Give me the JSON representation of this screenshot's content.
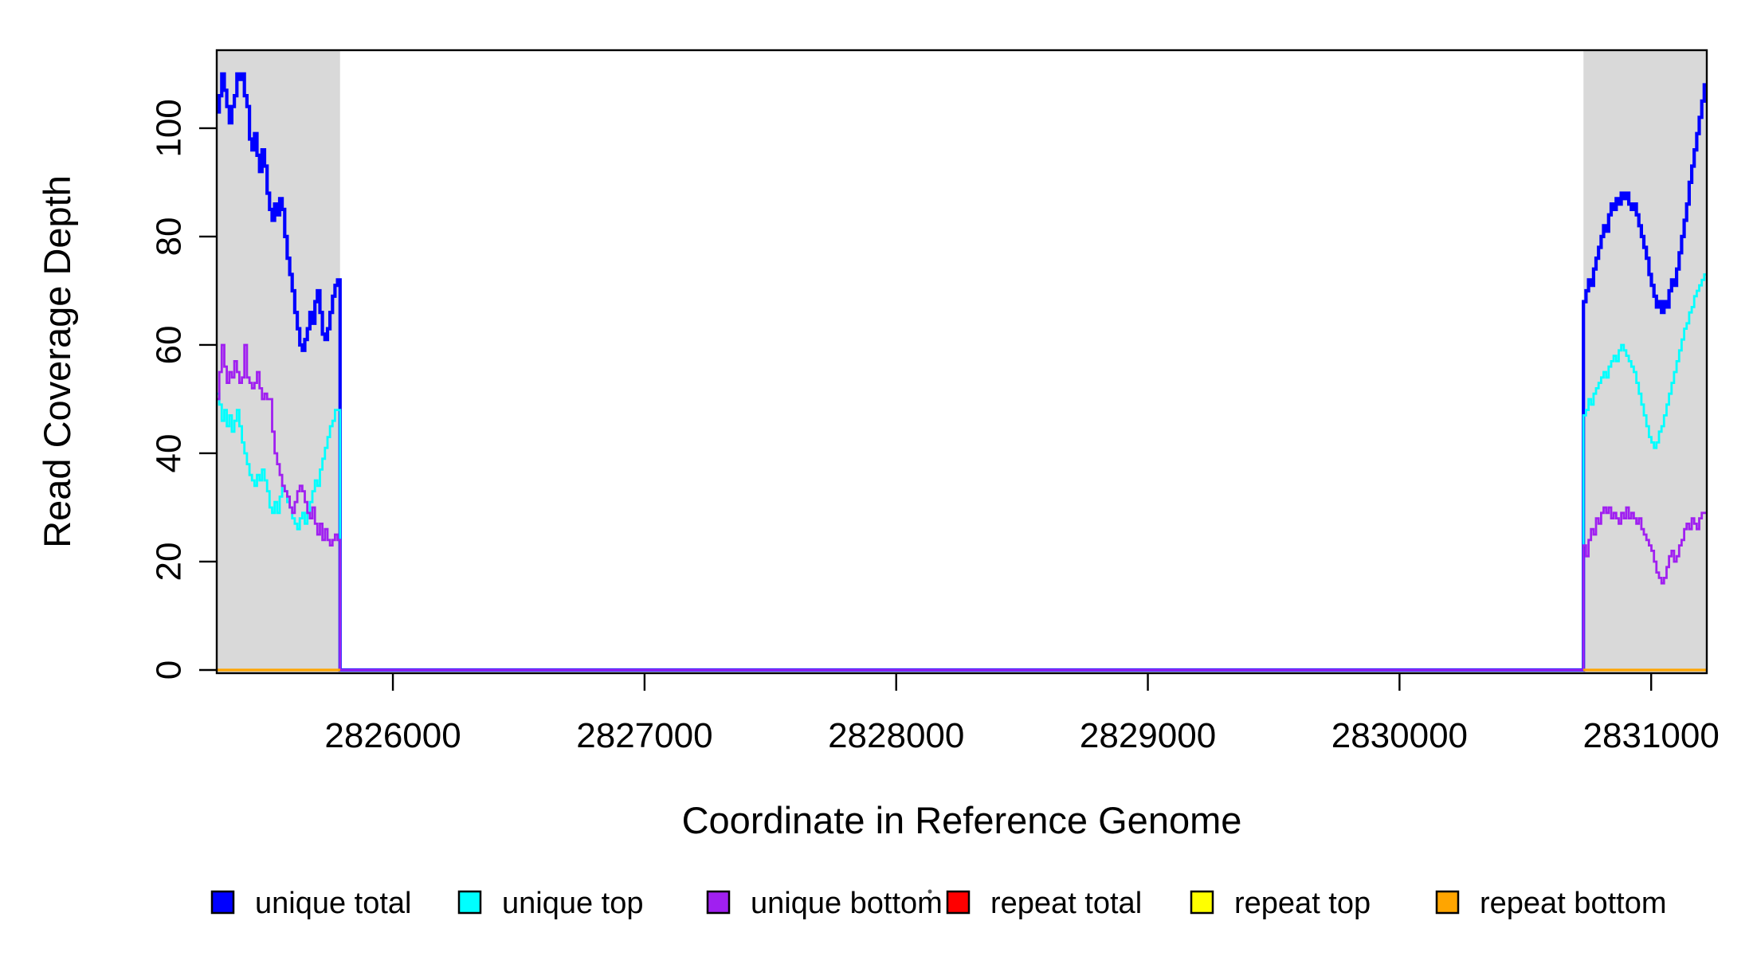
{
  "figure": {
    "background": "#FFFFFF",
    "plot_background": "#FFFFFF"
  },
  "chart_data": {
    "type": "line",
    "step": true,
    "title": "",
    "xlabel": "Coordinate in Reference Genome",
    "ylabel": "Read Coverage Depth",
    "xlim": [
      2825300,
      2831221
    ],
    "ylim": [
      0,
      114.4
    ],
    "xticks": [
      2826000,
      2827000,
      2828000,
      2829000,
      2830000,
      2831000
    ],
    "yticks": [
      0,
      20,
      40,
      60,
      80,
      100
    ],
    "grid": false,
    "box_color": "#000000",
    "shade_color": "#D9D9D9",
    "shaded_regions": [
      {
        "from": 2825300,
        "to": 2825790
      },
      {
        "from": 2830731,
        "to": 2831221
      }
    ],
    "sample_interval_bp": 10,
    "series": [
      {
        "name": "unique total",
        "color": "#0000FF",
        "width": 4.2,
        "zero_between_regions": true,
        "regions": [
          {
            "start": 2825300,
            "values": [
              103,
              106,
              110,
              107,
              104,
              101,
              104,
              106,
              110,
              109,
              110,
              106,
              104,
              98,
              96,
              99,
              95,
              92,
              96,
              93,
              88,
              85,
              83,
              86,
              84,
              87,
              85,
              80,
              76,
              73,
              70,
              66,
              63,
              60,
              59,
              61,
              63,
              66,
              64,
              68,
              70,
              66,
              62,
              61,
              63,
              66,
              69,
              71,
              72
            ]
          },
          {
            "start": 2830731,
            "values": [
              68,
              70,
              72,
              71,
              74,
              76,
              78,
              80,
              82,
              81,
              84,
              86,
              85,
              87,
              86,
              88,
              87,
              88,
              86,
              85,
              86,
              84,
              82,
              80,
              78,
              76,
              73,
              71,
              69,
              67,
              68,
              66,
              68,
              67,
              70,
              72,
              71,
              74,
              77,
              80,
              83,
              86,
              90,
              93,
              96,
              99,
              102,
              105,
              108
            ]
          }
        ]
      },
      {
        "name": "unique top",
        "color": "#00FFFF",
        "width": 2.8,
        "zero_between_regions": true,
        "regions": [
          {
            "start": 2825300,
            "values": [
              51,
              49,
              46,
              48,
              45,
              47,
              44,
              46,
              48,
              45,
              42,
              40,
              38,
              36,
              35,
              34,
              36,
              35,
              37,
              35,
              33,
              30,
              29,
              31,
              29,
              32,
              34,
              33,
              31,
              30,
              28,
              27,
              26,
              28,
              29,
              27,
              29,
              31,
              33,
              35,
              34,
              37,
              39,
              41,
              43,
              45,
              46,
              48,
              48
            ]
          },
          {
            "start": 2830731,
            "values": [
              47,
              48,
              50,
              49,
              51,
              52,
              53,
              54,
              55,
              54,
              56,
              57,
              58,
              57,
              59,
              60,
              59,
              58,
              57,
              56,
              55,
              53,
              51,
              49,
              47,
              45,
              43,
              42,
              41,
              42,
              44,
              45,
              47,
              49,
              51,
              53,
              55,
              57,
              59,
              61,
              63,
              64,
              66,
              67,
              69,
              70,
              71,
              72,
              73
            ]
          }
        ]
      },
      {
        "name": "unique bottom",
        "color": "#A020F0",
        "width": 2.8,
        "zero_between_regions": true,
        "regions": [
          {
            "start": 2825300,
            "values": [
              50,
              55,
              60,
              56,
              53,
              55,
              54,
              57,
              55,
              53,
              54,
              60,
              54,
              53,
              52,
              53,
              55,
              52,
              50,
              51,
              50,
              50,
              44,
              40,
              38,
              36,
              34,
              33,
              32,
              30,
              29,
              31,
              33,
              34,
              33,
              31,
              29,
              28,
              30,
              27,
              25,
              27,
              24,
              26,
              24,
              23,
              24,
              25,
              24
            ]
          },
          {
            "start": 2830731,
            "values": [
              23,
              21,
              24,
              26,
              25,
              28,
              27,
              29,
              30,
              29,
              30,
              28,
              29,
              28,
              27,
              29,
              28,
              30,
              28,
              29,
              28,
              27,
              28,
              26,
              25,
              24,
              23,
              22,
              20,
              18,
              17,
              16,
              17,
              19,
              21,
              22,
              20,
              21,
              23,
              24,
              26,
              27,
              26,
              28,
              27,
              26,
              28,
              29,
              29
            ]
          }
        ]
      },
      {
        "name": "repeat total",
        "color": "#FF0000",
        "width": 2.8,
        "zero_in_shaded_only": true,
        "regions": []
      },
      {
        "name": "repeat top",
        "color": "#FFFF00",
        "width": 2.8,
        "zero_in_shaded_only": true,
        "regions": []
      },
      {
        "name": "repeat bottom",
        "color": "#FFA500",
        "width": 3.2,
        "zero_in_shaded_only": true,
        "regions": []
      }
    ]
  },
  "legend": {
    "items": [
      {
        "label": "unique total",
        "color": "#0000FF"
      },
      {
        "label": "unique top",
        "color": "#00FFFF"
      },
      {
        "label": "unique bottom",
        "color": "#A020F0"
      },
      {
        "label": "repeat total",
        "color": "#FF0000"
      },
      {
        "label": "repeat top",
        "color": "#FFFF00"
      },
      {
        "label": "repeat bottom",
        "color": "#FFA500"
      }
    ]
  }
}
